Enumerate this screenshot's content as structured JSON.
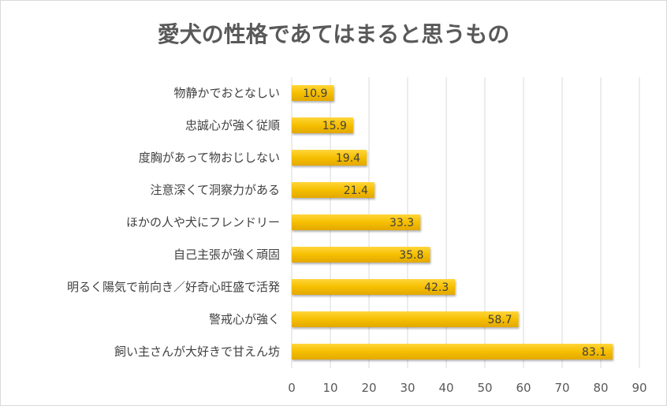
{
  "chart_data": {
    "type": "bar",
    "orientation": "horizontal",
    "title": "愛犬の性格であてはまると思うもの",
    "categories": [
      "物静かでおとなしい",
      "忠誠心が強く従順",
      "度胸があって物おじしない",
      "注意深くて洞察力がある",
      "ほかの人や犬にフレンドリー",
      "自己主張が強く頑固",
      "明るく陽気で前向き／好奇心旺盛で活発",
      "警戒心が強く",
      "飼い主さんが大好きで甘えん坊"
    ],
    "values": [
      10.9,
      15.9,
      19.4,
      21.4,
      33.3,
      35.8,
      42.3,
      58.7,
      83.1
    ],
    "labels": [
      "10.9",
      "15.9",
      "19.4",
      "21.4",
      "33.3",
      "35.8",
      "42.3",
      "58.7",
      "83.1"
    ],
    "xlim": [
      0,
      90
    ],
    "xticks": [
      "0",
      "10",
      "20",
      "30",
      "40",
      "50",
      "60",
      "70",
      "80",
      "90"
    ],
    "grid": true,
    "bar_color": "#f5bf00",
    "xlabel": "",
    "ylabel": ""
  }
}
